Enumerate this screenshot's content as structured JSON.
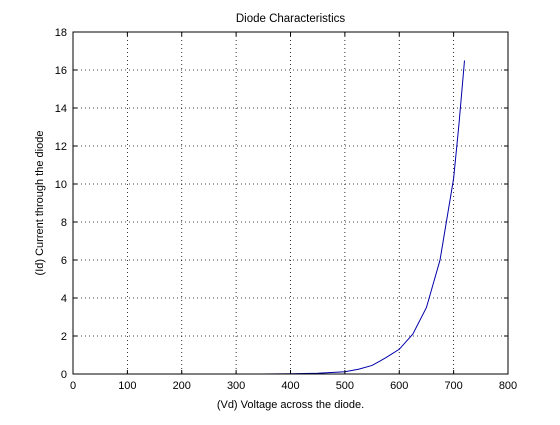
{
  "chart_data": {
    "type": "line",
    "title": "Diode Characteristics",
    "xlabel": "(Vd) Voltage across the diode.",
    "ylabel": "(Id) Current through the diode",
    "xlim": [
      0,
      800
    ],
    "ylim": [
      0,
      18
    ],
    "xticks": [
      0,
      100,
      200,
      300,
      400,
      500,
      600,
      700,
      800
    ],
    "yticks": [
      0,
      2,
      4,
      6,
      8,
      10,
      12,
      14,
      16,
      18
    ],
    "grid": true,
    "series": [
      {
        "color": "#0000aa",
        "x": [
          200,
          250,
          300,
          350,
          400,
          450,
          500,
          525,
          550,
          575,
          600,
          625,
          650,
          675,
          700,
          710,
          720
        ],
        "y": [
          0.0,
          0.0,
          0.0,
          0.0,
          0.01,
          0.04,
          0.12,
          0.25,
          0.45,
          0.85,
          1.3,
          2.1,
          3.5,
          6.0,
          10.3,
          13.2,
          16.5
        ]
      }
    ]
  }
}
